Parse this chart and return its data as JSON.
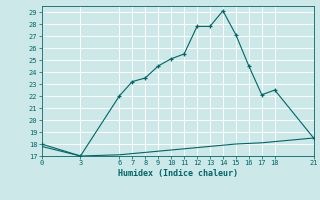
{
  "xlabel": "Humidex (Indice chaleur)",
  "bg_color": "#cce8e8",
  "grid_color": "#ffffff",
  "line_color": "#006666",
  "xlim": [
    0,
    21
  ],
  "ylim": [
    17,
    29.5
  ],
  "xticks": [
    0,
    3,
    6,
    7,
    8,
    9,
    10,
    11,
    12,
    13,
    14,
    15,
    16,
    17,
    18,
    21
  ],
  "yticks": [
    17,
    18,
    19,
    20,
    21,
    22,
    23,
    24,
    25,
    26,
    27,
    28,
    29
  ],
  "line1_x": [
    0,
    3,
    6,
    7,
    8,
    9,
    10,
    11,
    12,
    13,
    14,
    15,
    16,
    17,
    18,
    21
  ],
  "line1_y": [
    18,
    17,
    22,
    23.2,
    23.5,
    24.5,
    25.1,
    25.5,
    27.8,
    27.8,
    29.1,
    27.1,
    24.5,
    22.1,
    22.5,
    18.5
  ],
  "line2_x": [
    0,
    3,
    6,
    7,
    8,
    9,
    10,
    11,
    12,
    13,
    14,
    15,
    16,
    17,
    18,
    21
  ],
  "line2_y": [
    17.8,
    17.0,
    17.1,
    17.2,
    17.3,
    17.4,
    17.5,
    17.6,
    17.7,
    17.8,
    17.9,
    18.0,
    18.05,
    18.1,
    18.2,
    18.5
  ],
  "marker": "+"
}
